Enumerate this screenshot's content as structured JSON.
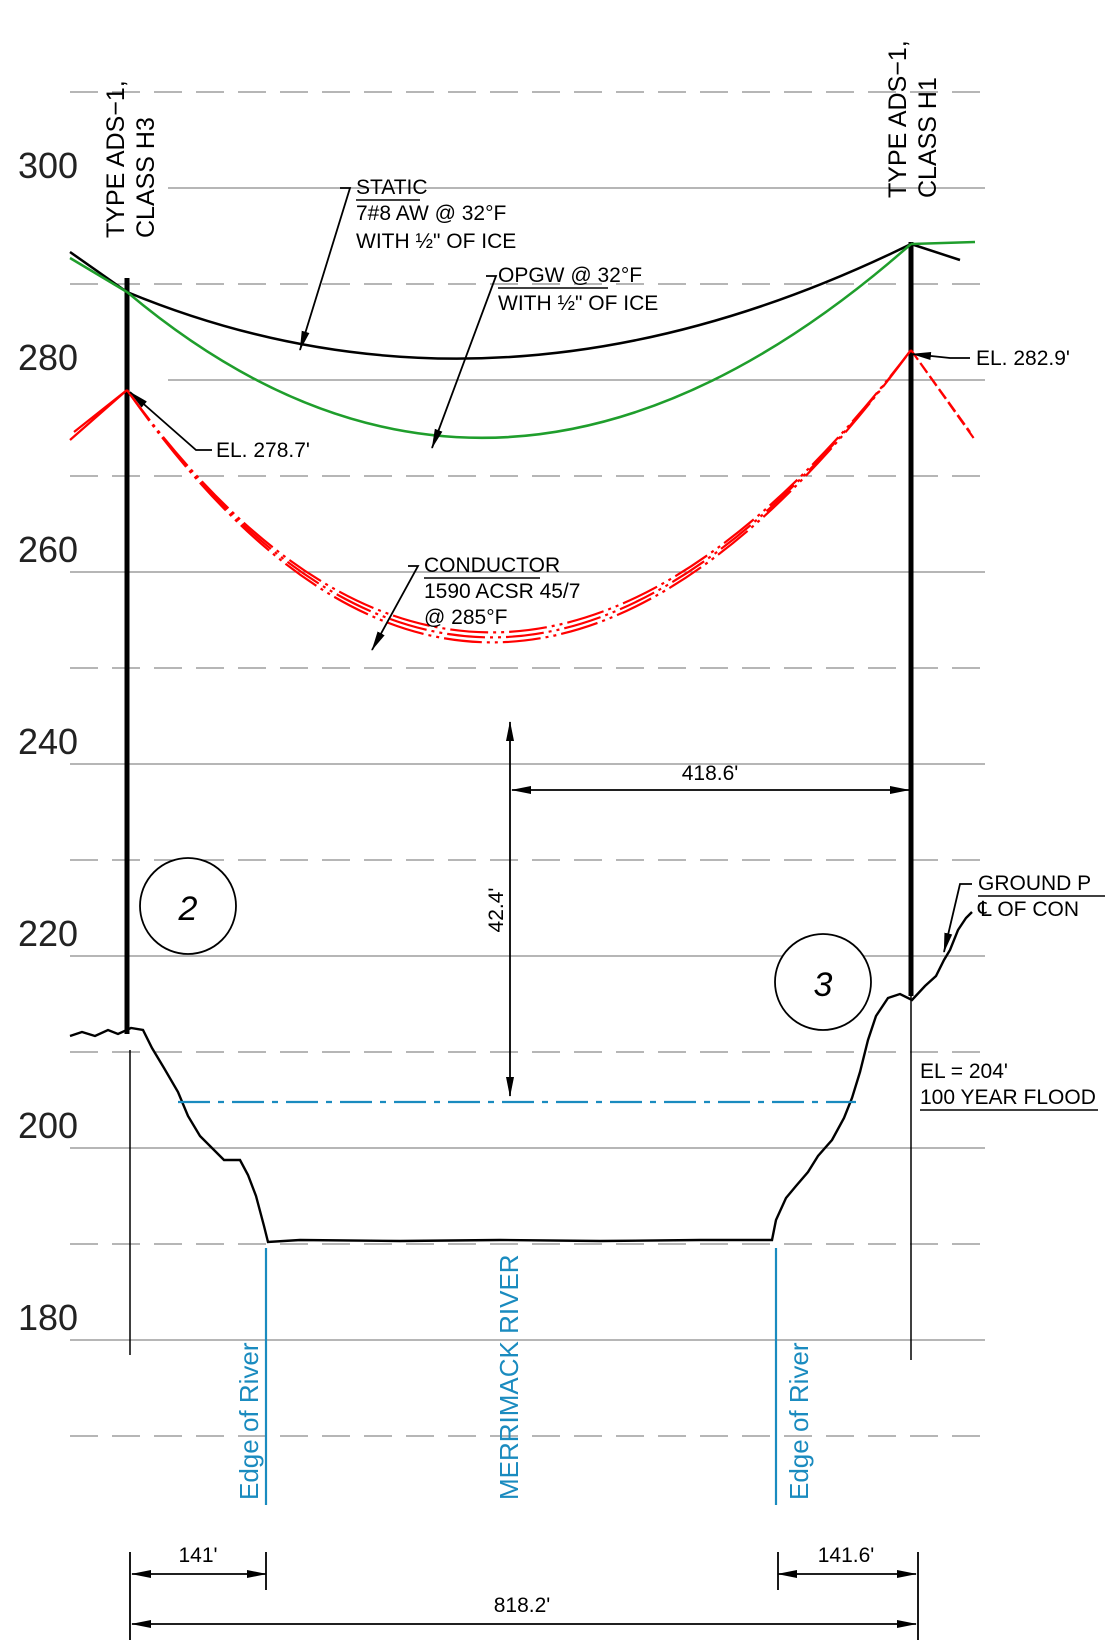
{
  "elevation_labels": [
    "300",
    "280",
    "260",
    "240",
    "220",
    "200",
    "180"
  ],
  "towers": {
    "left": {
      "line1": "TYPE ADS−1,",
      "line2": "CLASS H3",
      "number": "2",
      "attach_label": "EL. 278.7'"
    },
    "right": {
      "line1": "TYPE ADS−1,",
      "line2": "CLASS H1",
      "number": "3",
      "attach_label": "EL. 282.9'"
    }
  },
  "static_wire": {
    "line1": "STATIC",
    "line2": "7#8 AW @ 32°F",
    "line3": "WITH ½\" OF ICE"
  },
  "opgw_wire": {
    "line1": "OPGW @ 32°F",
    "line2": "WITH ½\" OF ICE"
  },
  "conductor": {
    "line1": "CONDUCTOR",
    "line2": "1590 ACSR 45/7",
    "line3": "@ 285°F"
  },
  "ground_profile": {
    "line1": "GROUND P",
    "line2": "℄ OF CON"
  },
  "flood": {
    "line1": "EL = 204'",
    "line2": "100 YEAR FLOOD"
  },
  "river": {
    "edge_left": "Edge of River",
    "name": "MERRIMACK RIVER",
    "edge_right": "Edge of River"
  },
  "dimensions": {
    "clearance": "42.4'",
    "half_span": "418.6'",
    "left_offset": "141'",
    "right_offset": "141.6'",
    "total_span": "818.2'"
  },
  "colors": {
    "static": "#000000",
    "opgw": "#1f9e2c",
    "conductor": "#ff0000",
    "water": "#1a8bbf",
    "grid": "#8a8a8a"
  }
}
